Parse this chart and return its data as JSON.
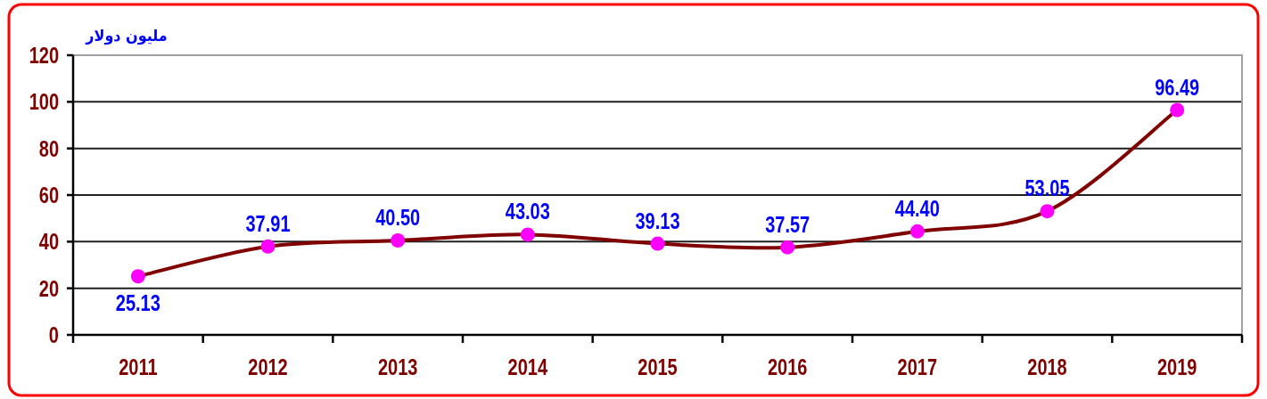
{
  "chart_data": {
    "type": "line",
    "ylabel": "مليون دولار",
    "categories": [
      "2011",
      "2012",
      "2013",
      "2014",
      "2015",
      "2016",
      "2017",
      "2018",
      "2019"
    ],
    "series": [
      {
        "color": "#800000",
        "colors": [
          "#ff00ff",
          "#ff00ff",
          "#ff00ff",
          "#ff00ff",
          "#ff00ff",
          "#ff00ff",
          "#ff00ff",
          "#ff00ff",
          "#ff00ff"
        ],
        "values": [
          25.13,
          37.91,
          40.5,
          43.03,
          39.13,
          37.57,
          44.4,
          53.05,
          96.49
        ],
        "value_labels": [
          "25.13",
          "37.91",
          "40.50",
          "43.03",
          "39.13",
          "37.57",
          "44.40",
          "53.05",
          "96.49"
        ]
      }
    ],
    "ylim": [
      0,
      120
    ],
    "yticks": [
      0,
      20,
      40,
      60,
      80,
      100,
      120
    ],
    "grid": "y",
    "marker": "circle",
    "line_style": "solid"
  }
}
